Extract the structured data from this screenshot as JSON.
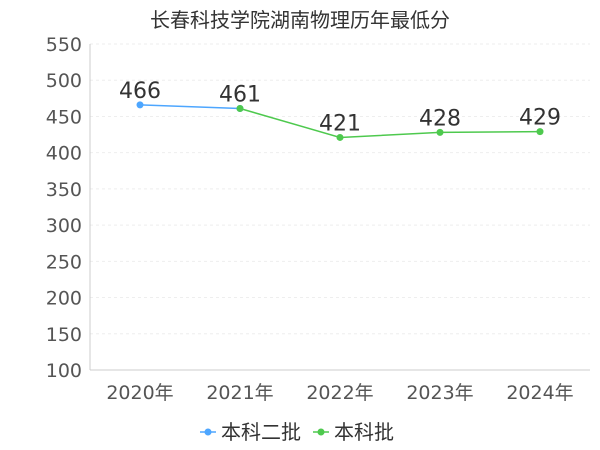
{
  "chart_data": {
    "type": "line",
    "title": "长春科技学院湖南物理历年最低分",
    "categories": [
      "2020年",
      "2021年",
      "2022年",
      "2023年",
      "2024年"
    ],
    "ylim": [
      100,
      550
    ],
    "yticks": [
      100,
      150,
      200,
      250,
      300,
      350,
      400,
      450,
      500,
      550
    ],
    "grid": true,
    "legend_position": "bottom",
    "series": [
      {
        "name": "本科二批",
        "color": "#4da6ff",
        "values": [
          466,
          461,
          null,
          null,
          null
        ]
      },
      {
        "name": "本科批",
        "color": "#4ec94e",
        "values": [
          null,
          461,
          421,
          428,
          429
        ]
      }
    ],
    "data_labels": [
      {
        "category": "2020年",
        "value": 466,
        "text": "466"
      },
      {
        "category": "2021年",
        "value": 461,
        "text": "461"
      },
      {
        "category": "2022年",
        "value": 421,
        "text": "421"
      },
      {
        "category": "2023年",
        "value": 428,
        "text": "428"
      },
      {
        "category": "2024年",
        "value": 429,
        "text": "429"
      }
    ]
  }
}
